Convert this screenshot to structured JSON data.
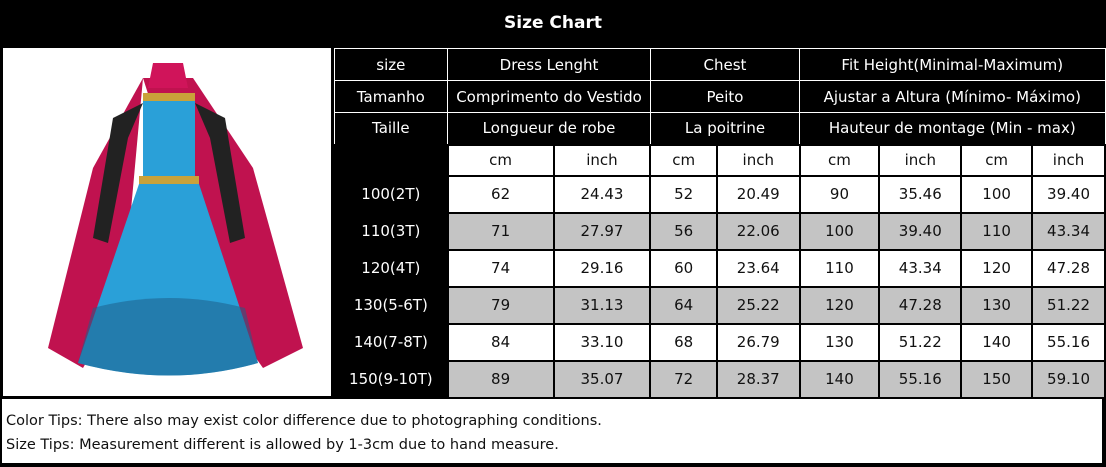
{
  "title": "Size Chart",
  "header_rows": [
    [
      "size",
      "Dress Lenght",
      "Chest",
      "Fit Height(Minimal-Maximum)"
    ],
    [
      "Tamanho",
      "Comprimento do Vestido",
      "Peito",
      "Ajustar a Altura (Mínimo- Máximo)"
    ],
    [
      "Taille",
      "Longueur de robe",
      "La poitrine",
      "Hauteur de montage (Min - max)"
    ]
  ],
  "units": [
    "cm",
    "inch",
    "cm",
    "inch",
    "cm",
    "inch",
    "cm",
    "inch"
  ],
  "rows": [
    [
      "100(2T)",
      "62",
      "24.43",
      "52",
      "20.49",
      "90",
      "35.46",
      "100",
      "39.40"
    ],
    [
      "110(3T)",
      "71",
      "27.97",
      "56",
      "22.06",
      "100",
      "39.40",
      "110",
      "43.34"
    ],
    [
      "120(4T)",
      "74",
      "29.16",
      "60",
      "23.64",
      "110",
      "43.34",
      "120",
      "47.28"
    ],
    [
      "130(5-6T)",
      "79",
      "31.13",
      "64",
      "25.22",
      "120",
      "47.28",
      "130",
      "51.22"
    ],
    [
      "140(7-8T)",
      "84",
      "33.10",
      "68",
      "26.79",
      "130",
      "51.22",
      "140",
      "55.16"
    ],
    [
      "150(9-10T)",
      "89",
      "35.07",
      "72",
      "28.37",
      "140",
      "55.16",
      "150",
      "59.10"
    ]
  ],
  "tips": [
    "Color Tips: There also may exist color difference due to photographing conditions.",
    "Size Tips: Measurement different is allowed by 1-3cm due to hand measure."
  ]
}
